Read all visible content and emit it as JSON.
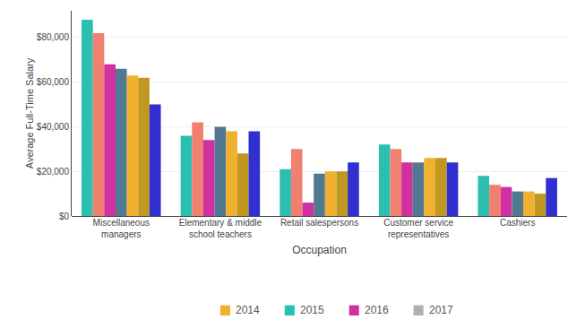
{
  "chart_data": {
    "type": "bar",
    "ylabel": "Average Full-Time Salary",
    "xlabel": "Occupation",
    "categories": [
      "Miscellaneous\nmanagers",
      "Elementary & middle\nschool teachers",
      "Retail salespersons",
      "Customer service\nrepresentatives",
      "Cashiers"
    ],
    "series": [
      {
        "color": "#2bbfaf",
        "values": [
          88000,
          36000,
          21000,
          32000,
          18000
        ]
      },
      {
        "color": "#f08070",
        "values": [
          82000,
          42000,
          30000,
          30000,
          14000
        ]
      },
      {
        "color": "#d030a0",
        "values": [
          68000,
          34000,
          6000,
          24000,
          13000
        ]
      },
      {
        "color": "#507890",
        "values": [
          66000,
          40000,
          19000,
          24000,
          11000
        ]
      },
      {
        "color": "#f0b030",
        "values": [
          63000,
          38000,
          20000,
          26000,
          11000
        ]
      },
      {
        "color": "#c09820",
        "values": [
          62000,
          28000,
          20000,
          26000,
          10000
        ]
      },
      {
        "color": "#3030d0",
        "values": [
          50000,
          38000,
          24000,
          24000,
          17000
        ]
      }
    ],
    "ylim": [
      0,
      92000
    ],
    "yticks": [
      {
        "value": 0,
        "label": "$0"
      },
      {
        "value": 20000,
        "label": "$20,000"
      },
      {
        "value": 40000,
        "label": "$40,000"
      },
      {
        "value": 60000,
        "label": "$60,000"
      },
      {
        "value": 80000,
        "label": "$80,000"
      }
    ],
    "grid": true,
    "annotations": [
      {
        "text": "2014",
        "color": "#f0b030"
      },
      {
        "text": "2015",
        "color": "#2bbfaf"
      },
      {
        "text": "2016",
        "color": "#d030a0"
      },
      {
        "text": "2017",
        "color": "#b0b0b0"
      }
    ]
  }
}
